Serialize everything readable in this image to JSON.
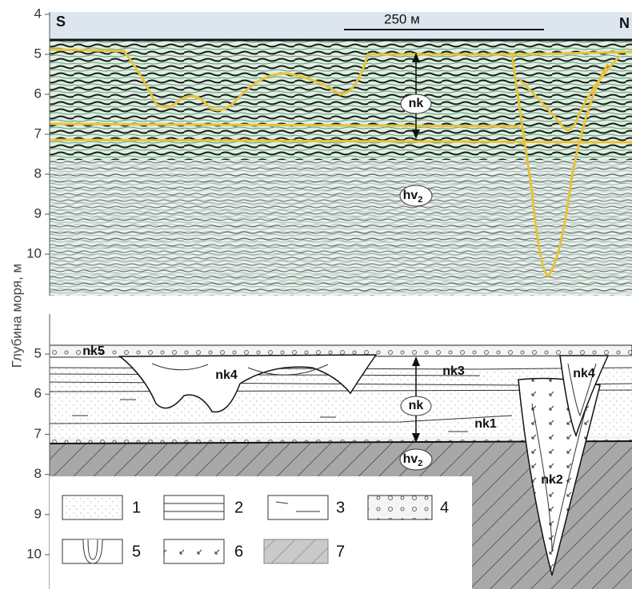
{
  "axis_label": "Глубина моря, м",
  "seismic": {
    "compass_left": "S",
    "compass_right": "N",
    "scale_bar": "250 м",
    "depth_ticks": [
      "4",
      "5",
      "6",
      "7",
      "8",
      "9",
      "10"
    ],
    "labels": {
      "nk": "nk",
      "hv": "hv",
      "hv_sub": "2"
    }
  },
  "section": {
    "depth_ticks": [
      "5",
      "6",
      "7",
      "8",
      "9",
      "10"
    ],
    "labels": {
      "nk5": "nk5",
      "nk4_left": "nk4",
      "nk3": "nk3",
      "nk4_right": "nk4",
      "nk": "nk",
      "nk1": "nk1",
      "nk2": "nk2",
      "hv": "hv",
      "hv_sub": "2"
    }
  },
  "legend": [
    "1",
    "2",
    "3",
    "4",
    "5",
    "6",
    "7"
  ]
}
